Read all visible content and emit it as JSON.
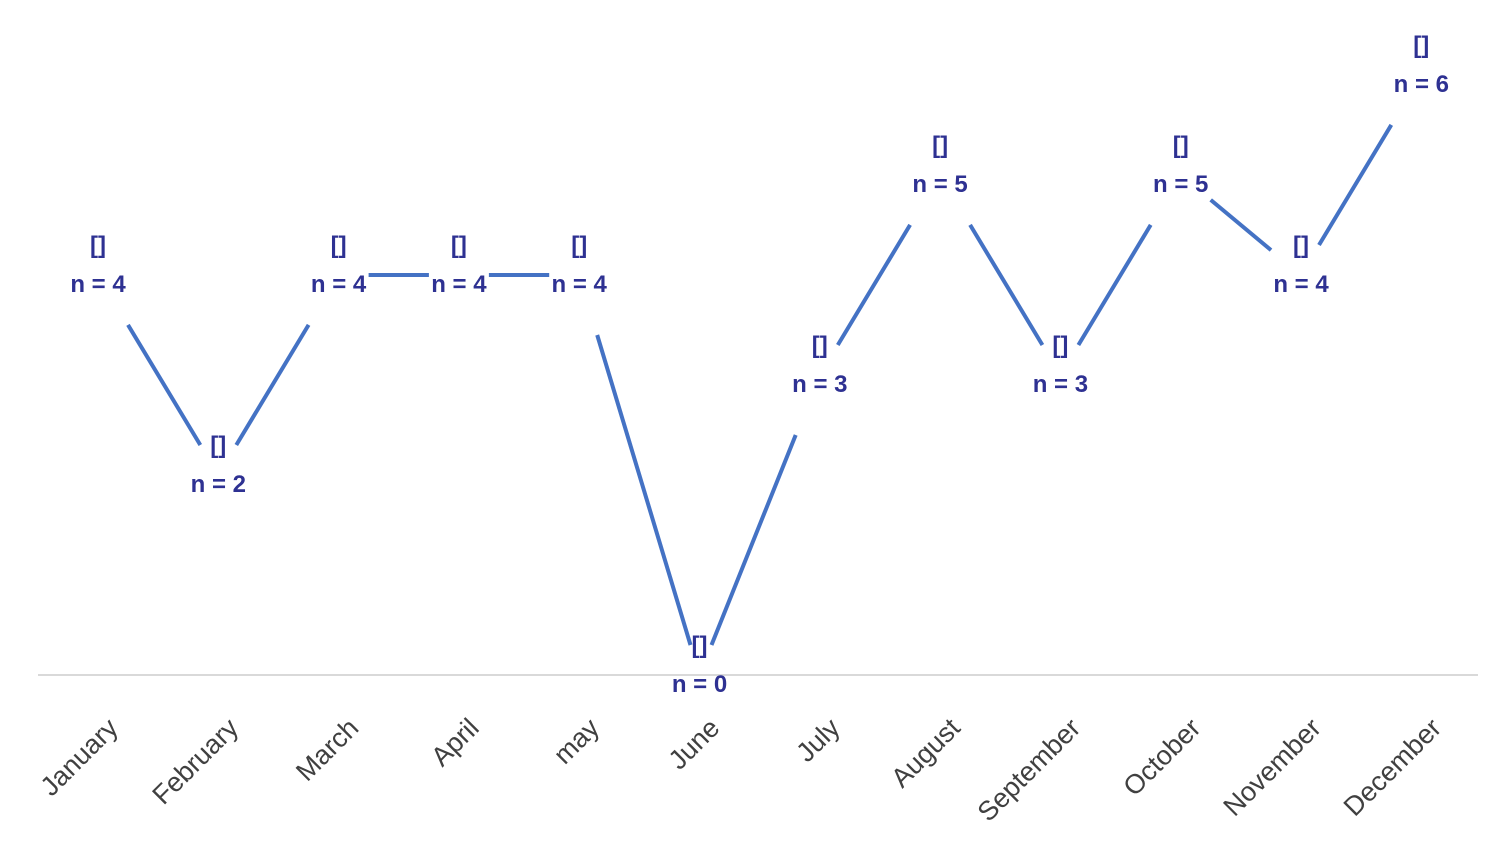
{
  "chart_data": {
    "type": "line",
    "categories": [
      "January",
      "February",
      "March",
      "April",
      "may",
      "June",
      "July",
      "August",
      "September",
      "October",
      "November",
      "December"
    ],
    "series": [
      {
        "values": [
          4,
          2,
          4,
          4,
          4,
          0,
          3,
          5,
          3,
          5,
          4,
          6
        ],
        "point_labels": [
          "[]",
          "[]",
          "[]",
          "[]",
          "[]",
          "[]",
          "[]",
          "[]",
          "[]",
          "[]",
          "[]",
          "[]"
        ],
        "data_labels": [
          "n = 4",
          "n = 2",
          "n = 4",
          "n = 4",
          "n = 4",
          "n = 0",
          "n = 3",
          "n = 5",
          "n = 3",
          "n = 5",
          "n = 4",
          "n = 6"
        ]
      }
    ],
    "title": "",
    "xlabel": "",
    "ylabel": "",
    "ylim": [
      0,
      6.2
    ],
    "grid": false,
    "legend": "none",
    "colors": {
      "line": "#4472C4",
      "label": "#2E3192",
      "axis": "#D9D9D9",
      "tick": "#404040"
    }
  }
}
